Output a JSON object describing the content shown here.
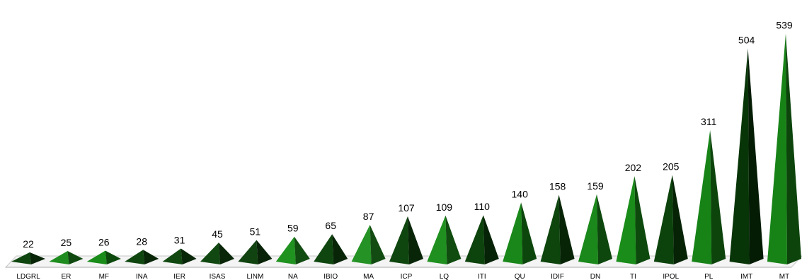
{
  "chart_data": {
    "type": "bar",
    "style": "3d-pyramid",
    "categories": [
      "LDGRL",
      "ER",
      "MF",
      "INA",
      "IER",
      "ISAS",
      "LINM",
      "NA",
      "IBIO",
      "MA",
      "ICP",
      "LQ",
      "ITI",
      "QU",
      "IDIF",
      "DN",
      "TI",
      "IPOL",
      "PL",
      "IMT",
      "MT"
    ],
    "values": [
      22,
      25,
      26,
      28,
      31,
      45,
      51,
      59,
      65,
      87,
      107,
      109,
      110,
      140,
      158,
      159,
      202,
      205,
      311,
      504,
      539
    ],
    "ylim": [
      0,
      560
    ],
    "grid": false,
    "legend": "none",
    "title": "",
    "xlabel": "",
    "ylabel": "",
    "colors": [
      "#0d3d0d",
      "#1a7a1a",
      "#167a16",
      "#0d3d0d",
      "#0e3f0e",
      "#0f3f0f",
      "#0e3a0e",
      "#1c7f1c",
      "#0d3d0d",
      "#1f7f1f",
      "#0d3d0d",
      "#1b7d1b",
      "#0b3a0b",
      "#167516",
      "#0b3c0b",
      "#177617",
      "#167a16",
      "#0a3a0a",
      "#147214",
      "#072e07",
      "#147214"
    ]
  }
}
